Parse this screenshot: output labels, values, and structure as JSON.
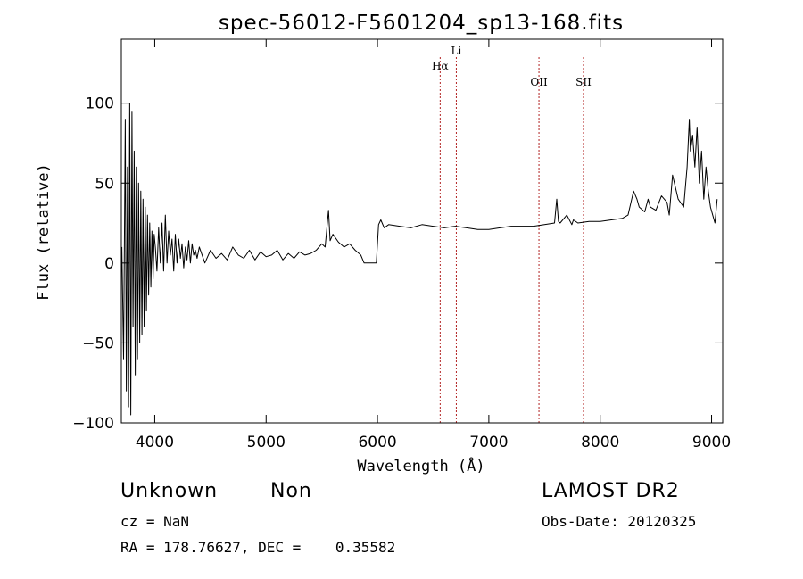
{
  "chart_data": {
    "type": "line",
    "title": "spec-56012-F5601204_sp13-168.fits",
    "xlabel": "Wavelength (Å)",
    "ylabel": "Flux (relative)",
    "xlim": [
      3700,
      9100
    ],
    "ylim": [
      -100,
      140
    ],
    "xticks": [
      4000,
      5000,
      6000,
      7000,
      8000,
      9000
    ],
    "yticks": [
      -100,
      -50,
      0,
      50,
      100
    ],
    "grid": false,
    "line_color": "#000000",
    "marker_color": "#b22222",
    "markers": [
      {
        "label": "Hα",
        "x": 6563
      },
      {
        "label": "Li",
        "x": 6708
      },
      {
        "label": "OII",
        "x": 7450
      },
      {
        "label": "SII",
        "x": 7850
      }
    ],
    "series": [
      {
        "x": [
          3705,
          3720,
          3735,
          3745,
          3755,
          3765,
          3775,
          3785,
          3795,
          3805,
          3815,
          3825,
          3835,
          3845,
          3855,
          3865,
          3875,
          3885,
          3895,
          3905,
          3915,
          3925,
          3935,
          3945,
          3955,
          3965,
          3975,
          3985,
          3995,
          4005,
          4020,
          4035,
          4050,
          4065,
          4080,
          4095,
          4110,
          4125,
          4140,
          4155,
          4170,
          4185,
          4200,
          4215,
          4230,
          4245,
          4260,
          4275,
          4290,
          4305,
          4320,
          4335,
          4350,
          4365,
          4380,
          4400,
          4450,
          4500,
          4550,
          4600,
          4650,
          4700,
          4750,
          4800,
          4850,
          4900,
          4950,
          5000,
          5050,
          5100,
          5150,
          5200,
          5250,
          5300,
          5350,
          5400,
          5450,
          5500,
          5530,
          5560,
          5575,
          5600,
          5650,
          5700,
          5750,
          5800,
          5850,
          5880,
          5900,
          5950,
          5990,
          6010,
          6030,
          6060,
          6100,
          6200,
          6300,
          6400,
          6500,
          6600,
          6700,
          6800,
          6900,
          7000,
          7100,
          7200,
          7300,
          7400,
          7500,
          7590,
          7610,
          7625,
          7640,
          7700,
          7745,
          7760,
          7800,
          7900,
          8000,
          8100,
          8200,
          8250,
          8300,
          8330,
          8350,
          8400,
          8430,
          8450,
          8500,
          8550,
          8600,
          8620,
          8650,
          8700,
          8750,
          8780,
          8800,
          8810,
          8830,
          8850,
          8870,
          8890,
          8910,
          8930,
          8950,
          8970,
          8990,
          9010,
          9030,
          9050
        ],
        "y": [
          10,
          -60,
          90,
          -80,
          60,
          -90,
          100,
          -95,
          95,
          -40,
          70,
          -70,
          60,
          -60,
          50,
          -50,
          45,
          -45,
          40,
          -40,
          35,
          -30,
          30,
          -20,
          25,
          -15,
          20,
          -10,
          18,
          10,
          -5,
          22,
          0,
          25,
          -5,
          30,
          0,
          20,
          5,
          15,
          -5,
          18,
          0,
          15,
          3,
          12,
          -3,
          10,
          2,
          14,
          0,
          12,
          5,
          8,
          3,
          10,
          0,
          8,
          3,
          6,
          2,
          10,
          5,
          3,
          8,
          2,
          7,
          4,
          5,
          8,
          2,
          6,
          3,
          7,
          5,
          6,
          8,
          12,
          10,
          33,
          14,
          18,
          13,
          10,
          12,
          8,
          5,
          0,
          0,
          0,
          0,
          24,
          27,
          22,
          24,
          23,
          22,
          24,
          23,
          22,
          23,
          22,
          21,
          21,
          22,
          23,
          23,
          23,
          24,
          25,
          40,
          26,
          25,
          30,
          24,
          27,
          25,
          26,
          26,
          27,
          28,
          30,
          45,
          40,
          35,
          32,
          40,
          35,
          33,
          42,
          38,
          30,
          55,
          40,
          35,
          60,
          90,
          70,
          80,
          60,
          85,
          50,
          70,
          40,
          60,
          45,
          35,
          30,
          25,
          40
        ]
      }
    ]
  },
  "info": {
    "class_label": "Unknown",
    "subclass_label": "Non",
    "survey_label": "LAMOST DR2",
    "cz_text": "cz = NaN",
    "obs_date_text": "Obs-Date: 20120325",
    "coords_text": "RA = 178.76627, DEC =    0.35582"
  }
}
